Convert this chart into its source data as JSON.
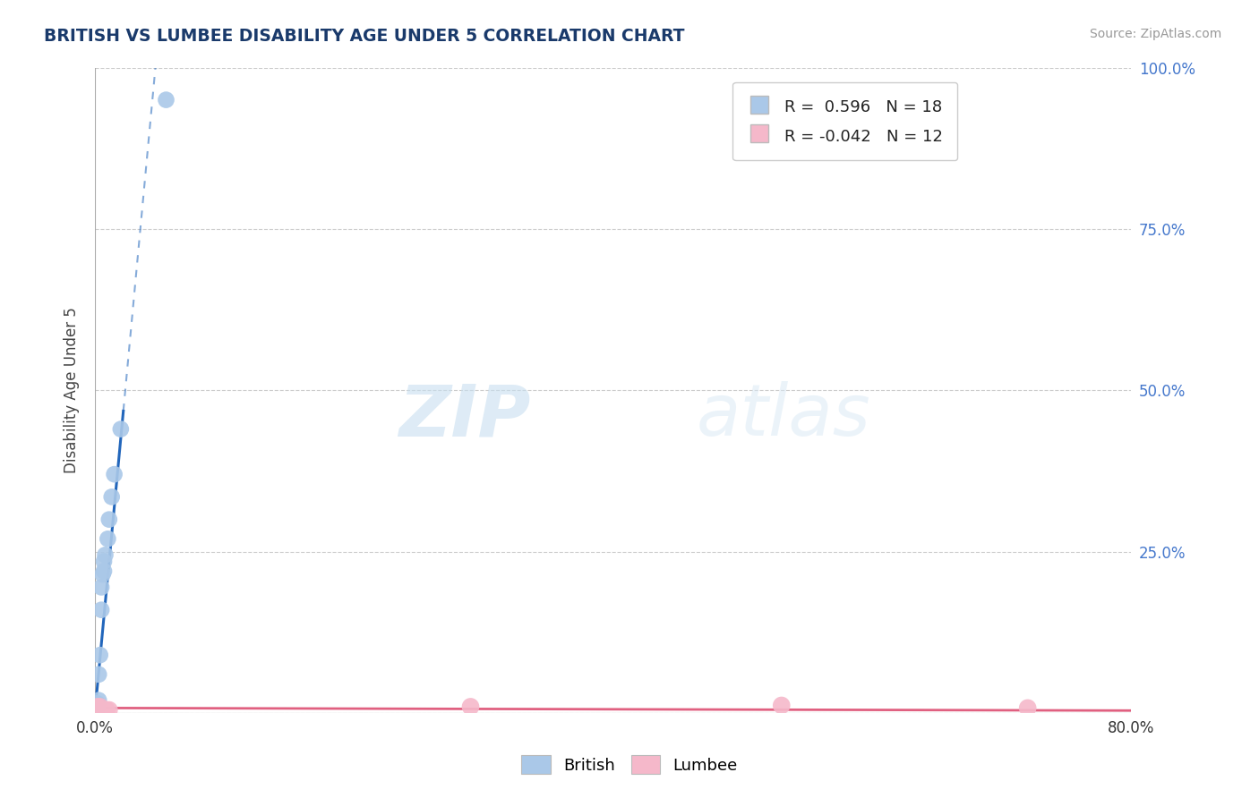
{
  "title": "BRITISH VS LUMBEE DISABILITY AGE UNDER 5 CORRELATION CHART",
  "source": "Source: ZipAtlas.com",
  "ylabel": "Disability Age Under 5",
  "xlim": [
    0.0,
    0.8
  ],
  "ylim": [
    0.0,
    1.0
  ],
  "xticks": [
    0.0,
    0.8
  ],
  "xticklabels": [
    "0.0%",
    "80.0%"
  ],
  "yticks": [
    0.25,
    0.5,
    0.75,
    1.0
  ],
  "yticklabels": [
    "25.0%",
    "50.0%",
    "75.0%",
    "100.0%"
  ],
  "british_r": 0.596,
  "british_n": 18,
  "lumbee_r": -0.042,
  "lumbee_n": 12,
  "british_color": "#aac8e8",
  "lumbee_color": "#f5b8ca",
  "trendline_british_color": "#2266bb",
  "trendline_lumbee_color": "#e06080",
  "british_x": [
    0.001,
    0.002,
    0.002,
    0.003,
    0.003,
    0.004,
    0.005,
    0.005,
    0.006,
    0.007,
    0.007,
    0.008,
    0.01,
    0.011,
    0.013,
    0.015,
    0.02,
    0.055
  ],
  "british_y": [
    0.005,
    0.01,
    0.015,
    0.02,
    0.06,
    0.09,
    0.16,
    0.195,
    0.215,
    0.22,
    0.235,
    0.245,
    0.27,
    0.3,
    0.335,
    0.37,
    0.44,
    0.95
  ],
  "lumbee_x": [
    0.001,
    0.002,
    0.002,
    0.003,
    0.004,
    0.004,
    0.006,
    0.009,
    0.011,
    0.29,
    0.53,
    0.72
  ],
  "lumbee_y": [
    0.005,
    0.005,
    0.01,
    0.005,
    0.005,
    0.01,
    0.005,
    0.005,
    0.005,
    0.01,
    0.012,
    0.008
  ],
  "watermark_zip": "ZIP",
  "watermark_atlas": "atlas",
  "background_color": "#ffffff",
  "grid_color": "#cccccc",
  "title_color": "#1a3a6b",
  "source_color": "#999999",
  "tick_color": "#4477cc",
  "ylabel_color": "#444444"
}
